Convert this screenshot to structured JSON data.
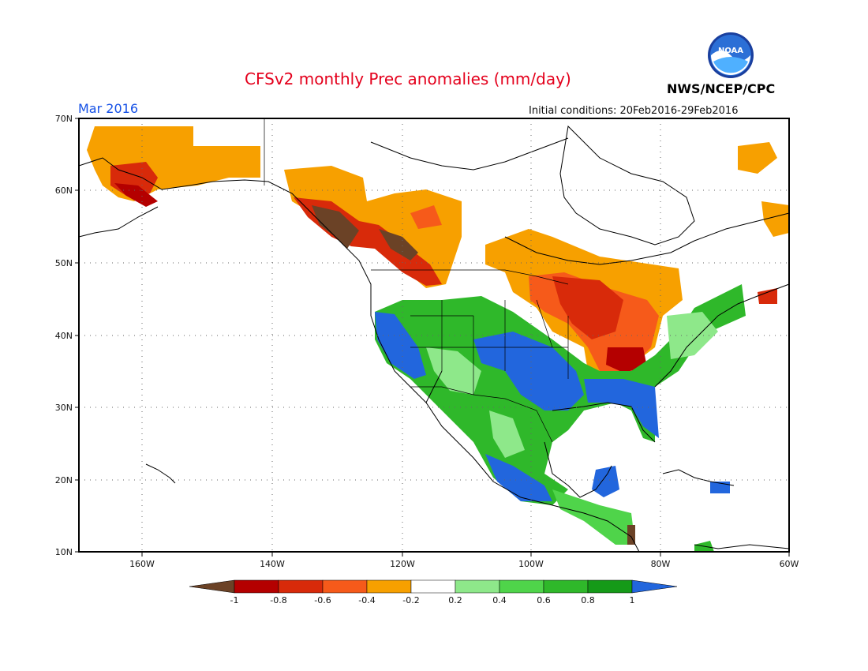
{
  "header": {
    "title": "CFSv2 monthly Prec anomalies (mm/day)",
    "month": "Mar 2016",
    "initial_conditions": "Initial conditions: 20Feb2016-29Feb2016",
    "organization": "NWS/NCEP/CPC",
    "logo_text": "NOAA"
  },
  "axes": {
    "lat_labels": [
      "70N",
      "60N",
      "50N",
      "40N",
      "30N",
      "20N",
      "10N"
    ],
    "lon_labels": [
      "160W",
      "140W",
      "120W",
      "100W",
      "80W",
      "60W"
    ]
  },
  "colorbar": {
    "labels": [
      "-1",
      "-0.8",
      "-0.6",
      "-0.4",
      "-0.2",
      "0.2",
      "0.4",
      "0.6",
      "0.8",
      "1"
    ],
    "colors": {
      "lt_-1": "#6b4226",
      "-1_-0.8": "#b40000",
      "-0.8_-0.6": "#d82a0a",
      "-0.6_-0.4": "#f65a1a",
      "-0.4_-0.2": "#f7a000",
      "-0.2_0.2": "#ffffff",
      "0.2_0.4": "#8ee88a",
      "0.4_0.6": "#4fd44a",
      "0.6_0.8": "#2fb82a",
      "0.8_1": "#159a18",
      "gt_1": "#2266dd"
    }
  }
}
